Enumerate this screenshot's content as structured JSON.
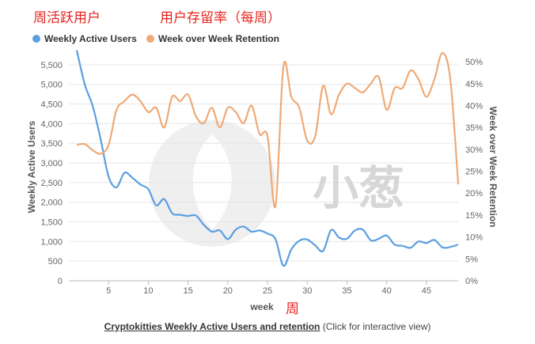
{
  "annotations": {
    "wau_cn": "周活跃用户",
    "retention_cn": "用户存留率（每周）",
    "week_cn": "周"
  },
  "watermark": {
    "text": "小葱"
  },
  "caption": {
    "link_text": "Cryptokitties Weekly Active Users and retention",
    "rest_text": " (Click for interactive view)"
  },
  "colors": {
    "wau": "#5b9fe0",
    "retention": "#eeaa77",
    "grid": "#e6e6e6",
    "axis_text": "#666666"
  },
  "chart_data": {
    "type": "line",
    "title": "",
    "xlabel": "week",
    "ylabel": "Weekly Active Users",
    "y2label": "Week over Week Retention",
    "xlim": [
      0,
      49
    ],
    "ylim": [
      0,
      5800
    ],
    "y2lim": [
      0,
      0.52
    ],
    "xticks": [
      5,
      10,
      15,
      20,
      25,
      30,
      35,
      40,
      45
    ],
    "xtick_labels": [
      "5",
      "10",
      "15",
      "20",
      "25",
      "30",
      "35",
      "40",
      "45"
    ],
    "yticks": [
      0,
      500,
      1000,
      1500,
      2000,
      2500,
      3000,
      3500,
      4000,
      4500,
      5000,
      5500
    ],
    "ytick_labels": [
      "0",
      "500",
      "1,000",
      "1,500",
      "2,000",
      "2,500",
      "3,000",
      "3,500",
      "4,000",
      "4,500",
      "5,000",
      "5,500"
    ],
    "y2ticks": [
      0,
      0.05,
      0.1,
      0.15,
      0.2,
      0.25,
      0.3,
      0.35,
      0.4,
      0.45,
      0.5
    ],
    "y2tick_labels": [
      "0%",
      "5%",
      "10%",
      "15%",
      "20%",
      "25%",
      "30%",
      "35%",
      "40%",
      "45%",
      "50%"
    ],
    "grid": true,
    "legend": "top-left",
    "series": [
      {
        "name": "Weekly Active Users",
        "axis": "left",
        "x": [
          1,
          2,
          3,
          4,
          5,
          6,
          7,
          8,
          9,
          10,
          11,
          12,
          13,
          14,
          15,
          16,
          17,
          18,
          19,
          20,
          21,
          22,
          23,
          24,
          25,
          26,
          27,
          28,
          29,
          30,
          31,
          32,
          33,
          34,
          35,
          36,
          37,
          38,
          39,
          40,
          41,
          42,
          43,
          44,
          45,
          46,
          47,
          48,
          49
        ],
        "values": [
          5870,
          5000,
          4450,
          3600,
          2650,
          2380,
          2750,
          2620,
          2450,
          2330,
          1920,
          2080,
          1720,
          1680,
          1650,
          1660,
          1420,
          1250,
          1280,
          1060,
          1300,
          1380,
          1250,
          1280,
          1200,
          1060,
          380,
          800,
          1020,
          1050,
          900,
          760,
          1290,
          1100,
          1070,
          1280,
          1300,
          1030,
          1070,
          1150,
          920,
          890,
          840,
          1000,
          960,
          1040,
          850,
          860,
          920
        ]
      },
      {
        "name": "Week over Week Retention",
        "axis": "right",
        "x": [
          1,
          2,
          3,
          4,
          5,
          6,
          7,
          8,
          9,
          10,
          11,
          12,
          13,
          14,
          15,
          16,
          17,
          18,
          19,
          20,
          21,
          22,
          23,
          24,
          25,
          26,
          27,
          28,
          29,
          30,
          31,
          32,
          33,
          34,
          35,
          36,
          37,
          38,
          39,
          40,
          41,
          42,
          43,
          44,
          45,
          46,
          47,
          48,
          49
        ],
        "values": [
          0.31,
          0.312,
          0.298,
          0.29,
          0.31,
          0.39,
          0.41,
          0.425,
          0.41,
          0.385,
          0.395,
          0.35,
          0.42,
          0.41,
          0.425,
          0.375,
          0.36,
          0.395,
          0.35,
          0.395,
          0.385,
          0.36,
          0.4,
          0.335,
          0.33,
          0.17,
          0.49,
          0.42,
          0.395,
          0.32,
          0.33,
          0.445,
          0.38,
          0.425,
          0.45,
          0.44,
          0.43,
          0.45,
          0.465,
          0.39,
          0.44,
          0.44,
          0.48,
          0.46,
          0.42,
          0.46,
          0.52,
          0.46,
          0.22
        ]
      }
    ]
  }
}
